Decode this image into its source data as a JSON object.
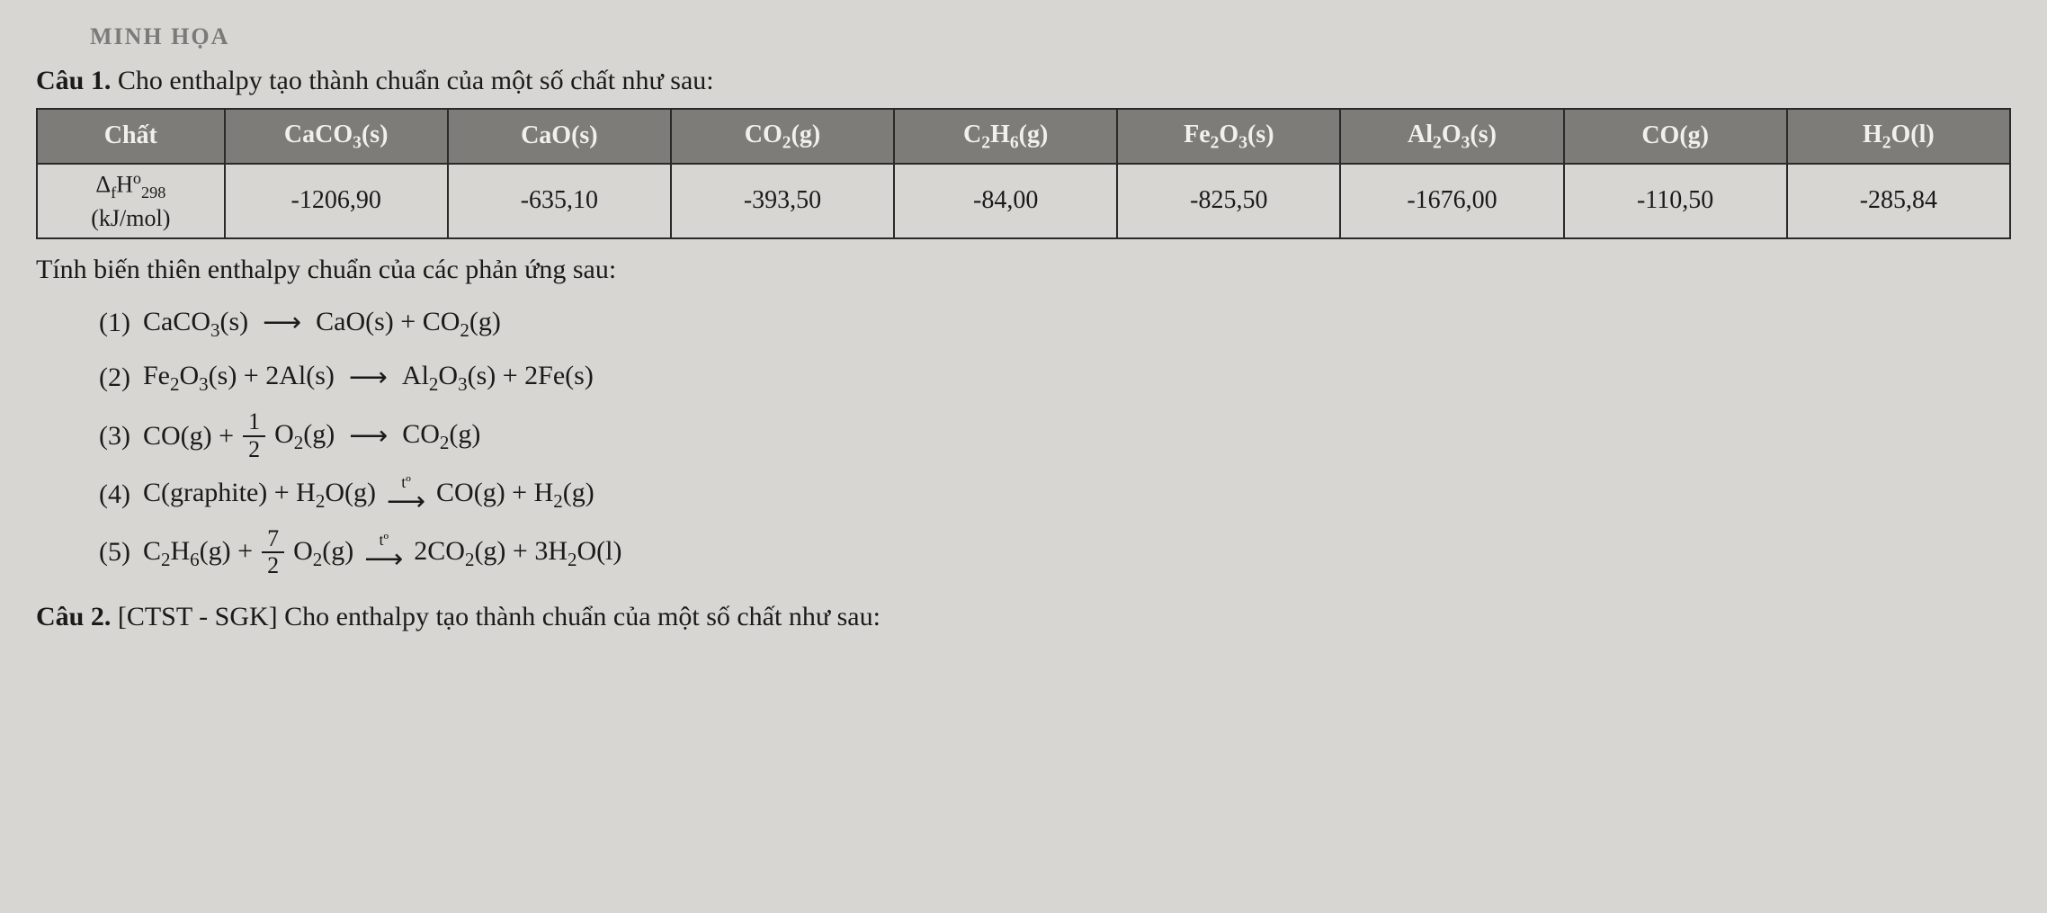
{
  "faint_header": "MINH HỌA",
  "q1": {
    "label": "Câu 1.",
    "intro": " Cho enthalpy tạo thành chuẩn của một số chất như sau:"
  },
  "table": {
    "header_first": "Chất",
    "headers": [
      "CaCO<sub>3</sub>(s)",
      "CaO(s)",
      "CO<sub>2</sub>(g)",
      "C<sub>2</sub>H<sub>6</sub>(g)",
      "Fe<sub>2</sub>O<sub>3</sub>(s)",
      "Al<sub>2</sub>O<sub>3</sub>(s)",
      "CO(g)",
      "H<sub>2</sub>O(l)"
    ],
    "row_label_delta": "Δ<sub>f</sub>H<sup>o</sup><sub>298</sub>",
    "row_label_unit": "(kJ/mol)",
    "values": [
      "-1206,90",
      "-635,10",
      "-393,50",
      "-84,00",
      "-825,50",
      "-1676,00",
      "-110,50",
      "-285,84"
    ]
  },
  "after_table": "Tính biến thiên enthalpy chuẩn của các phản ứng sau:",
  "equations": {
    "eq1": {
      "num": "(1)",
      "lhs": "CaCO<sub>3</sub>(s)",
      "arrow": "⟶",
      "rhs": "CaO(s) + CO<sub>2</sub>(g)"
    },
    "eq2": {
      "num": "(2)",
      "lhs": "Fe<sub>2</sub>O<sub>3</sub>(s)  +  2Al(s)",
      "arrow": "⟶",
      "rhs": "Al<sub>2</sub>O<sub>3</sub>(s)  +  2Fe(s)"
    },
    "eq3": {
      "num": "(3)",
      "lhs_a": "CO(g) +",
      "frac_num": "1",
      "frac_den": "2",
      "lhs_b": "O<sub>2</sub>(g)",
      "arrow": "⟶",
      "rhs": "CO<sub>2</sub>(g)"
    },
    "eq4": {
      "num": "(4)",
      "lhs": "C(graphite) + H<sub>2</sub>O(g)",
      "t_label": "tº",
      "arrow": "⟶",
      "rhs": "CO(g) + H<sub>2</sub>(g)"
    },
    "eq5": {
      "num": "(5)",
      "lhs_a": "C<sub>2</sub>H<sub>6</sub>(g) +",
      "frac_num": "7",
      "frac_den": "2",
      "lhs_b": "O<sub>2</sub>(g)",
      "t_label": "tº",
      "arrow": "⟶",
      "rhs": "2CO<sub>2</sub>(g) + 3H<sub>2</sub>O(l)"
    }
  },
  "q2": {
    "label": "Câu 2.",
    "text": " [CTST - SGK] Cho enthalpy tạo thành chuẩn của một số chất như sau:"
  },
  "colors": {
    "page_bg": "#d8d6d2",
    "text": "#1a1a1a",
    "th_bg": "#7e7c78",
    "th_text": "#f2f0ec",
    "border": "#2a2a2a",
    "faint": "#7a7a78"
  }
}
